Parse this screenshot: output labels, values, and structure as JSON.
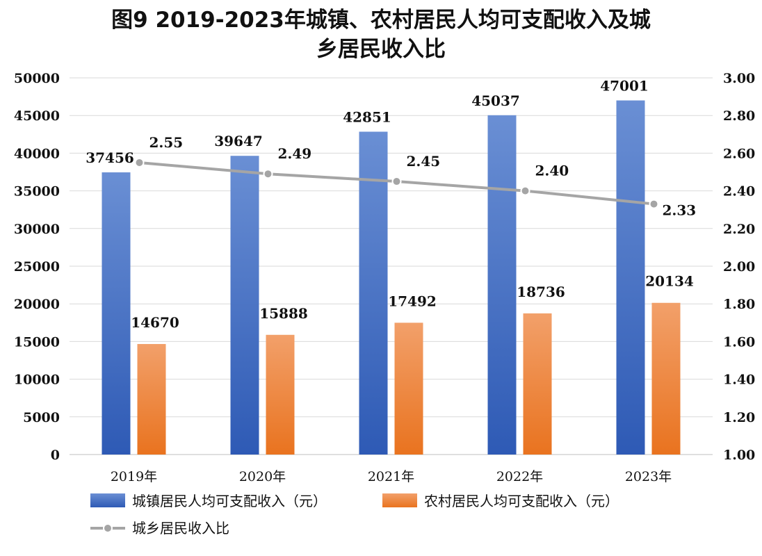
{
  "chart_data": {
    "type": "bar",
    "title_line1": "图9 2019-2023年城镇、农村居民人均可支配收入及城",
    "title_line2": "乡居民收入比",
    "categories": [
      "2019年",
      "2020年",
      "2021年",
      "2022年",
      "2023年"
    ],
    "series": [
      {
        "name": "城镇居民人均可支配收入（元）",
        "type": "bar",
        "axis": "left",
        "color": "#4472C4",
        "values": [
          37456,
          39647,
          42851,
          45037,
          47001
        ],
        "labels": [
          "37456",
          "39647",
          "42851",
          "45037",
          "47001"
        ]
      },
      {
        "name": "农村居民人均可支配收入（元）",
        "type": "bar",
        "axis": "left",
        "color": "#ED7D31",
        "values": [
          14670,
          15888,
          17492,
          18736,
          20134
        ],
        "labels": [
          "14670",
          "15888",
          "17492",
          "18736",
          "20134"
        ]
      },
      {
        "name": "城乡居民收入比",
        "type": "line",
        "axis": "right",
        "color": "#A5A5A5",
        "values": [
          2.55,
          2.49,
          2.45,
          2.4,
          2.33
        ],
        "labels": [
          "2.55",
          "2.49",
          "2.45",
          "2.40",
          "2.33"
        ]
      }
    ],
    "y_left": {
      "min": 0,
      "max": 50000,
      "step": 5000,
      "ticks": [
        "0",
        "5000",
        "10000",
        "15000",
        "20000",
        "25000",
        "30000",
        "35000",
        "40000",
        "45000",
        "50000"
      ]
    },
    "y_right": {
      "min": 1.0,
      "max": 3.0,
      "step": 0.2,
      "ticks": [
        "1.00",
        "1.20",
        "1.40",
        "1.60",
        "1.80",
        "2.00",
        "2.20",
        "2.40",
        "2.60",
        "2.80",
        "3.00"
      ]
    },
    "grid": true,
    "legend_position": "bottom"
  }
}
